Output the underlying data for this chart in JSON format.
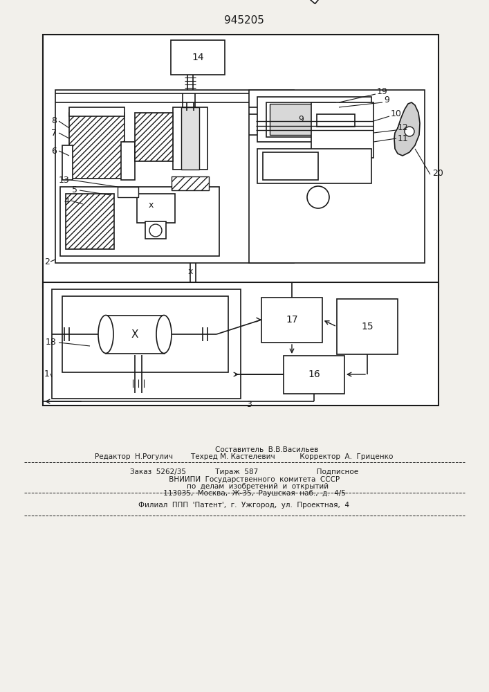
{
  "patent_number": "945205",
  "bg_color": "#f2f0eb",
  "line_color": "#1a1a1a",
  "footer_line1": "                    Составитель  В.В.Васильев",
  "footer_line2": "Редактор  Н.Рогулич        Техред М. Кастелевич           Корректор  А.  Гриценко",
  "footer_line3": "Заказ  5262/35             Тираж  587                          Подписное",
  "footer_line4": "         ВНИИПИ  Государственного  комитета  СССР",
  "footer_line5": "            по  делам  изобретений  и  открытий",
  "footer_line6": "         113035,  Москва,  Ж-35,  Раушская  наб.,  д.  4/5",
  "footer_line7": "Филиал  ППП  'Патент',  г.  Ужгород,  ул.  Проектная,  4"
}
